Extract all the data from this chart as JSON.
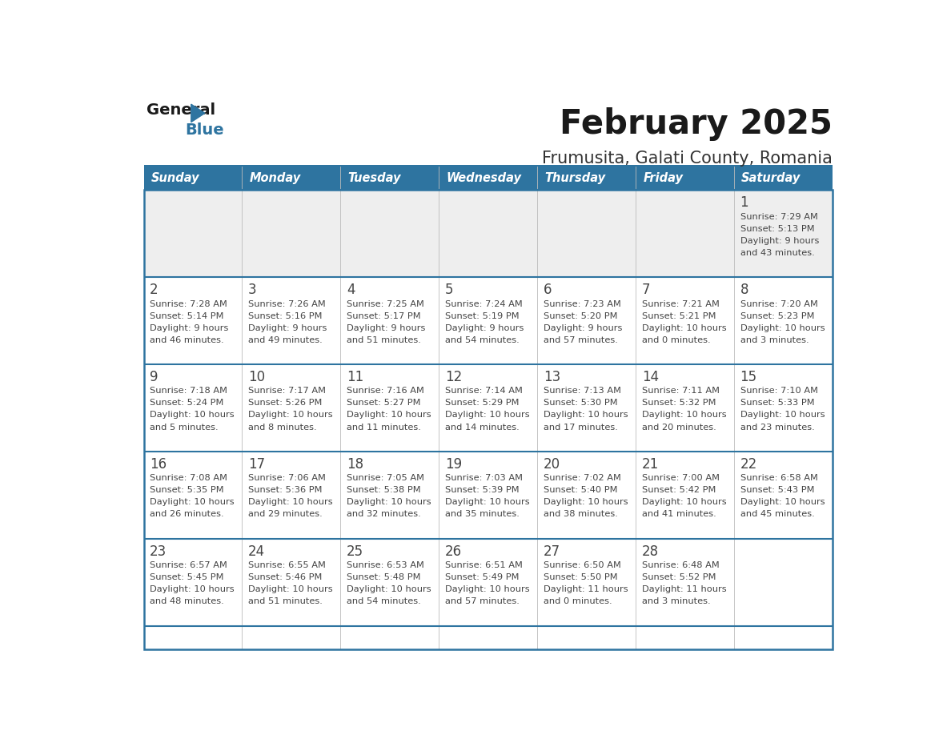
{
  "title": "February 2025",
  "subtitle": "Frumusita, Galati County, Romania",
  "days_of_week": [
    "Sunday",
    "Monday",
    "Tuesday",
    "Wednesday",
    "Thursday",
    "Friday",
    "Saturday"
  ],
  "header_bg": "#2E74A0",
  "header_text": "#FFFFFF",
  "border_color": "#2E74A0",
  "day_number_color": "#444444",
  "info_text_color": "#444444",
  "title_color": "#1a1a1a",
  "subtitle_color": "#333333",
  "row0_bg": "#EEEEEE",
  "row_bg": "#FFFFFF",
  "calendar_data": [
    [
      null,
      null,
      null,
      null,
      null,
      null,
      {
        "day": "1",
        "sunrise": "7:29 AM",
        "sunset": "5:13 PM",
        "daylight1": "9 hours",
        "daylight2": "and 43 minutes."
      }
    ],
    [
      {
        "day": "2",
        "sunrise": "7:28 AM",
        "sunset": "5:14 PM",
        "daylight1": "9 hours",
        "daylight2": "and 46 minutes."
      },
      {
        "day": "3",
        "sunrise": "7:26 AM",
        "sunset": "5:16 PM",
        "daylight1": "9 hours",
        "daylight2": "and 49 minutes."
      },
      {
        "day": "4",
        "sunrise": "7:25 AM",
        "sunset": "5:17 PM",
        "daylight1": "9 hours",
        "daylight2": "and 51 minutes."
      },
      {
        "day": "5",
        "sunrise": "7:24 AM",
        "sunset": "5:19 PM",
        "daylight1": "9 hours",
        "daylight2": "and 54 minutes."
      },
      {
        "day": "6",
        "sunrise": "7:23 AM",
        "sunset": "5:20 PM",
        "daylight1": "9 hours",
        "daylight2": "and 57 minutes."
      },
      {
        "day": "7",
        "sunrise": "7:21 AM",
        "sunset": "5:21 PM",
        "daylight1": "10 hours",
        "daylight2": "and 0 minutes."
      },
      {
        "day": "8",
        "sunrise": "7:20 AM",
        "sunset": "5:23 PM",
        "daylight1": "10 hours",
        "daylight2": "and 3 minutes."
      }
    ],
    [
      {
        "day": "9",
        "sunrise": "7:18 AM",
        "sunset": "5:24 PM",
        "daylight1": "10 hours",
        "daylight2": "and 5 minutes."
      },
      {
        "day": "10",
        "sunrise": "7:17 AM",
        "sunset": "5:26 PM",
        "daylight1": "10 hours",
        "daylight2": "and 8 minutes."
      },
      {
        "day": "11",
        "sunrise": "7:16 AM",
        "sunset": "5:27 PM",
        "daylight1": "10 hours",
        "daylight2": "and 11 minutes."
      },
      {
        "day": "12",
        "sunrise": "7:14 AM",
        "sunset": "5:29 PM",
        "daylight1": "10 hours",
        "daylight2": "and 14 minutes."
      },
      {
        "day": "13",
        "sunrise": "7:13 AM",
        "sunset": "5:30 PM",
        "daylight1": "10 hours",
        "daylight2": "and 17 minutes."
      },
      {
        "day": "14",
        "sunrise": "7:11 AM",
        "sunset": "5:32 PM",
        "daylight1": "10 hours",
        "daylight2": "and 20 minutes."
      },
      {
        "day": "15",
        "sunrise": "7:10 AM",
        "sunset": "5:33 PM",
        "daylight1": "10 hours",
        "daylight2": "and 23 minutes."
      }
    ],
    [
      {
        "day": "16",
        "sunrise": "7:08 AM",
        "sunset": "5:35 PM",
        "daylight1": "10 hours",
        "daylight2": "and 26 minutes."
      },
      {
        "day": "17",
        "sunrise": "7:06 AM",
        "sunset": "5:36 PM",
        "daylight1": "10 hours",
        "daylight2": "and 29 minutes."
      },
      {
        "day": "18",
        "sunrise": "7:05 AM",
        "sunset": "5:38 PM",
        "daylight1": "10 hours",
        "daylight2": "and 32 minutes."
      },
      {
        "day": "19",
        "sunrise": "7:03 AM",
        "sunset": "5:39 PM",
        "daylight1": "10 hours",
        "daylight2": "and 35 minutes."
      },
      {
        "day": "20",
        "sunrise": "7:02 AM",
        "sunset": "5:40 PM",
        "daylight1": "10 hours",
        "daylight2": "and 38 minutes."
      },
      {
        "day": "21",
        "sunrise": "7:00 AM",
        "sunset": "5:42 PM",
        "daylight1": "10 hours",
        "daylight2": "and 41 minutes."
      },
      {
        "day": "22",
        "sunrise": "6:58 AM",
        "sunset": "5:43 PM",
        "daylight1": "10 hours",
        "daylight2": "and 45 minutes."
      }
    ],
    [
      {
        "day": "23",
        "sunrise": "6:57 AM",
        "sunset": "5:45 PM",
        "daylight1": "10 hours",
        "daylight2": "and 48 minutes."
      },
      {
        "day": "24",
        "sunrise": "6:55 AM",
        "sunset": "5:46 PM",
        "daylight1": "10 hours",
        "daylight2": "and 51 minutes."
      },
      {
        "day": "25",
        "sunrise": "6:53 AM",
        "sunset": "5:48 PM",
        "daylight1": "10 hours",
        "daylight2": "and 54 minutes."
      },
      {
        "day": "26",
        "sunrise": "6:51 AM",
        "sunset": "5:49 PM",
        "daylight1": "10 hours",
        "daylight2": "and 57 minutes."
      },
      {
        "day": "27",
        "sunrise": "6:50 AM",
        "sunset": "5:50 PM",
        "daylight1": "11 hours",
        "daylight2": "and 0 minutes."
      },
      {
        "day": "28",
        "sunrise": "6:48 AM",
        "sunset": "5:52 PM",
        "daylight1": "11 hours",
        "daylight2": "and 3 minutes."
      },
      null
    ]
  ]
}
